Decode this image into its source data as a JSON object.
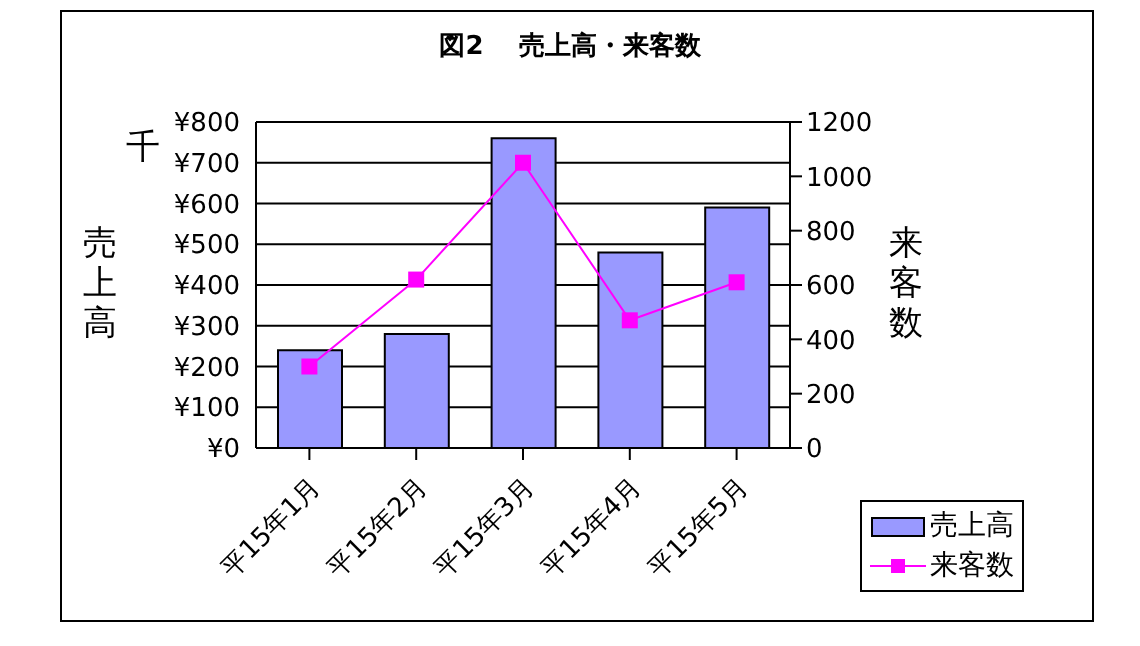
{
  "chart_data": {
    "type": "bar",
    "title": "図2　 売上高・来客数",
    "categories": [
      "平15年1月",
      "平15年2月",
      "平15年3月",
      "平15年4月",
      "平15年5月"
    ],
    "series": [
      {
        "name": "売上高",
        "color": "#9999ff",
        "values": [
          240,
          280,
          760,
          480,
          590
        ]
      },
      {
        "name": "来客数",
        "type": "line",
        "axis": "y2",
        "color": "#ff00ff",
        "marker": "square",
        "values": [
          300,
          620,
          1050,
          470,
          610
        ]
      }
    ],
    "ylabel": "売上高",
    "y2label": "来客数",
    "annotations": [
      "千"
    ],
    "ylim": [
      0,
      800
    ],
    "yticks": [
      {
        "value": 0,
        "label": "¥0"
      },
      {
        "value": 100,
        "label": "¥100"
      },
      {
        "value": 200,
        "label": "¥200"
      },
      {
        "value": 300,
        "label": "¥300"
      },
      {
        "value": 400,
        "label": "¥400"
      },
      {
        "value": 500,
        "label": "¥500"
      },
      {
        "value": 600,
        "label": "¥600"
      },
      {
        "value": 700,
        "label": "¥700"
      },
      {
        "value": 800,
        "label": "¥800"
      }
    ],
    "y2lim": [
      0,
      1200
    ],
    "y2ticks": [
      0,
      200,
      400,
      600,
      800,
      1000,
      1200
    ],
    "grid": "y",
    "legend": "bottom right"
  }
}
